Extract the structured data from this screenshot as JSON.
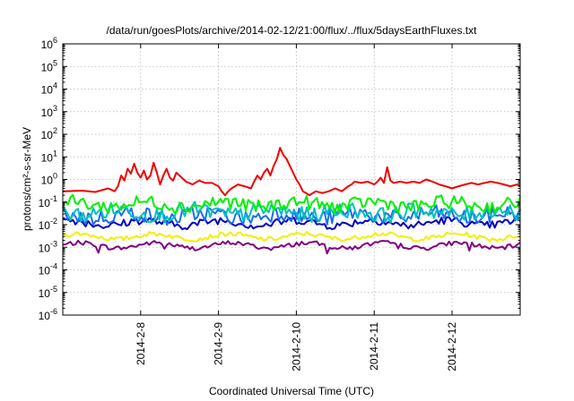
{
  "chart_data": {
    "type": "line",
    "title": "/data/run/goesPlots/archive/2014-02-12/21:00/flux/../flux/5daysEarthFluxes.txt",
    "xlabel": "Coordinated Universal Time (UTC)",
    "ylabel": "protons/cm²-s-sr-MeV",
    "yscale": "log",
    "ylim": [
      1e-06,
      1000000.0
    ],
    "xlim": [
      "2014-02-07 00:00",
      "2014-02-12 21:00"
    ],
    "grid": true,
    "legend": "none",
    "y_tick_labels": [
      {
        "value": 1e-06,
        "base": "10",
        "exp": "-6"
      },
      {
        "value": 1e-05,
        "base": "10",
        "exp": "-5"
      },
      {
        "value": 0.0001,
        "base": "10",
        "exp": "-4"
      },
      {
        "value": 0.001,
        "base": "10",
        "exp": "-3"
      },
      {
        "value": 0.01,
        "base": "10",
        "exp": "-2"
      },
      {
        "value": 0.1,
        "base": "10",
        "exp": "-1"
      },
      {
        "value": 1,
        "base": "10",
        "exp": "0"
      },
      {
        "value": 10,
        "base": "10",
        "exp": "1"
      },
      {
        "value": 100,
        "base": "10",
        "exp": "2"
      },
      {
        "value": 1000,
        "base": "10",
        "exp": "3"
      },
      {
        "value": 10000,
        "base": "10",
        "exp": "4"
      },
      {
        "value": 100000,
        "base": "10",
        "exp": "5"
      },
      {
        "value": 1000000,
        "base": "10",
        "exp": "6"
      }
    ],
    "x_tick_labels": [
      {
        "date": "2014-02-08 00:00",
        "label": "2014-2-8"
      },
      {
        "date": "2014-02-09 00:00",
        "label": "2014-2-9"
      },
      {
        "date": "2014-02-10 00:00",
        "label": "2014-2-10"
      },
      {
        "date": "2014-02-11 00:00",
        "label": "2014-2-11"
      },
      {
        "date": "2014-02-12 00:00",
        "label": "2014-2-12"
      }
    ],
    "series": [
      {
        "color": "#f00000",
        "points": [
          [
            "2014-02-07 00:00",
            0.3
          ],
          [
            "2014-02-07 06:00",
            0.32
          ],
          [
            "2014-02-07 10:00",
            0.28
          ],
          [
            "2014-02-07 14:00",
            0.4
          ],
          [
            "2014-02-07 16:00",
            0.3
          ],
          [
            "2014-02-07 17:00",
            0.5
          ],
          [
            "2014-02-07 18:00",
            1.5
          ],
          [
            "2014-02-07 19:00",
            0.9
          ],
          [
            "2014-02-07 20:00",
            3.0
          ],
          [
            "2014-02-07 21:00",
            1.8
          ],
          [
            "2014-02-07 22:00",
            5.0
          ],
          [
            "2014-02-07 23:00",
            2.0
          ],
          [
            "2014-02-08 00:00",
            1.2
          ],
          [
            "2014-02-08 01:00",
            2.5
          ],
          [
            "2014-02-08 02:00",
            1.0
          ],
          [
            "2014-02-08 03:00",
            1.5
          ],
          [
            "2014-02-08 04:00",
            5.5
          ],
          [
            "2014-02-08 05:00",
            2.0
          ],
          [
            "2014-02-08 06:00",
            0.6
          ],
          [
            "2014-02-08 07:00",
            1.5
          ],
          [
            "2014-02-08 08:00",
            3.0
          ],
          [
            "2014-02-08 09:00",
            1.2
          ],
          [
            "2014-02-08 10:00",
            0.9
          ],
          [
            "2014-02-08 11:00",
            2.0
          ],
          [
            "2014-02-08 12:00",
            1.5
          ],
          [
            "2014-02-08 14:00",
            0.8
          ],
          [
            "2014-02-08 16:00",
            0.6
          ],
          [
            "2014-02-08 18:00",
            0.9
          ],
          [
            "2014-02-08 20:00",
            0.7
          ],
          [
            "2014-02-08 22:00",
            0.7
          ],
          [
            "2014-02-09 00:00",
            0.5
          ],
          [
            "2014-02-09 01:00",
            0.3
          ],
          [
            "2014-02-09 02:00",
            0.2
          ],
          [
            "2014-02-09 03:00",
            0.3
          ],
          [
            "2014-02-09 04:00",
            0.4
          ],
          [
            "2014-02-09 06:00",
            0.6
          ],
          [
            "2014-02-09 08:00",
            0.5
          ],
          [
            "2014-02-09 10:00",
            0.4
          ],
          [
            "2014-02-09 11:00",
            0.8
          ],
          [
            "2014-02-09 12:00",
            1.5
          ],
          [
            "2014-02-09 13:00",
            1.0
          ],
          [
            "2014-02-09 14:00",
            2.0
          ],
          [
            "2014-02-09 15:00",
            3.0
          ],
          [
            "2014-02-09 16:00",
            1.5
          ],
          [
            "2014-02-09 17:00",
            4.0
          ],
          [
            "2014-02-09 18:00",
            8.0
          ],
          [
            "2014-02-09 19:00",
            25.0
          ],
          [
            "2014-02-09 20:00",
            12.0
          ],
          [
            "2014-02-09 21:00",
            8.0
          ],
          [
            "2014-02-09 22:00",
            4.0
          ],
          [
            "2014-02-09 23:00",
            2.0
          ],
          [
            "2014-02-10 00:00",
            1.0
          ],
          [
            "2014-02-10 01:00",
            0.6
          ],
          [
            "2014-02-10 02:00",
            0.3
          ],
          [
            "2014-02-10 03:00",
            0.25
          ],
          [
            "2014-02-10 04:00",
            0.2
          ],
          [
            "2014-02-10 06:00",
            0.3
          ],
          [
            "2014-02-10 08:00",
            0.25
          ],
          [
            "2014-02-10 10:00",
            0.3
          ],
          [
            "2014-02-10 12:00",
            0.4
          ],
          [
            "2014-02-10 14:00",
            0.3
          ],
          [
            "2014-02-10 16:00",
            0.5
          ],
          [
            "2014-02-10 17:00",
            0.6
          ],
          [
            "2014-02-10 18:00",
            0.8
          ],
          [
            "2014-02-10 20:00",
            0.7
          ],
          [
            "2014-02-10 22:00",
            0.8
          ],
          [
            "2014-02-11 00:00",
            0.6
          ],
          [
            "2014-02-11 01:00",
            0.8
          ],
          [
            "2014-02-11 02:00",
            1.2
          ],
          [
            "2014-02-11 03:00",
            0.7
          ],
          [
            "2014-02-11 04:00",
            3.5
          ],
          [
            "2014-02-11 05:00",
            0.9
          ],
          [
            "2014-02-11 06:00",
            0.7
          ],
          [
            "2014-02-11 08:00",
            0.8
          ],
          [
            "2014-02-11 10:00",
            0.7
          ],
          [
            "2014-02-11 12:00",
            0.8
          ],
          [
            "2014-02-11 14:00",
            0.7
          ],
          [
            "2014-02-11 16:00",
            1.0
          ],
          [
            "2014-02-11 18:00",
            0.8
          ],
          [
            "2014-02-11 20:00",
            0.6
          ],
          [
            "2014-02-11 22:00",
            0.5
          ],
          [
            "2014-02-12 00:00",
            0.4
          ],
          [
            "2014-02-12 02:00",
            0.5
          ],
          [
            "2014-02-12 04:00",
            0.6
          ],
          [
            "2014-02-12 06:00",
            0.7
          ],
          [
            "2014-02-12 08:00",
            0.6
          ],
          [
            "2014-02-12 10:00",
            0.7
          ],
          [
            "2014-02-12 12:00",
            0.8
          ],
          [
            "2014-02-12 14:00",
            0.7
          ],
          [
            "2014-02-12 16:00",
            0.6
          ],
          [
            "2014-02-12 18:00",
            0.5
          ],
          [
            "2014-02-12 20:00",
            0.6
          ],
          [
            "2014-02-12 21:00",
            0.5
          ]
        ]
      },
      {
        "color": "#00f000",
        "level": 0.08,
        "spread": 0.3
      },
      {
        "color": "#00c0c0",
        "level": 0.035,
        "spread": 0.35
      },
      {
        "color": "#1a6ef0",
        "level": 0.025,
        "spread": 0.35
      },
      {
        "color": "#0000c0",
        "level": 0.012,
        "spread": 0.18
      },
      {
        "color": "#f0f000",
        "level": 0.003,
        "spread": 0.1
      },
      {
        "color": "#800080",
        "level": 0.0012,
        "spread": 0.1
      }
    ]
  }
}
